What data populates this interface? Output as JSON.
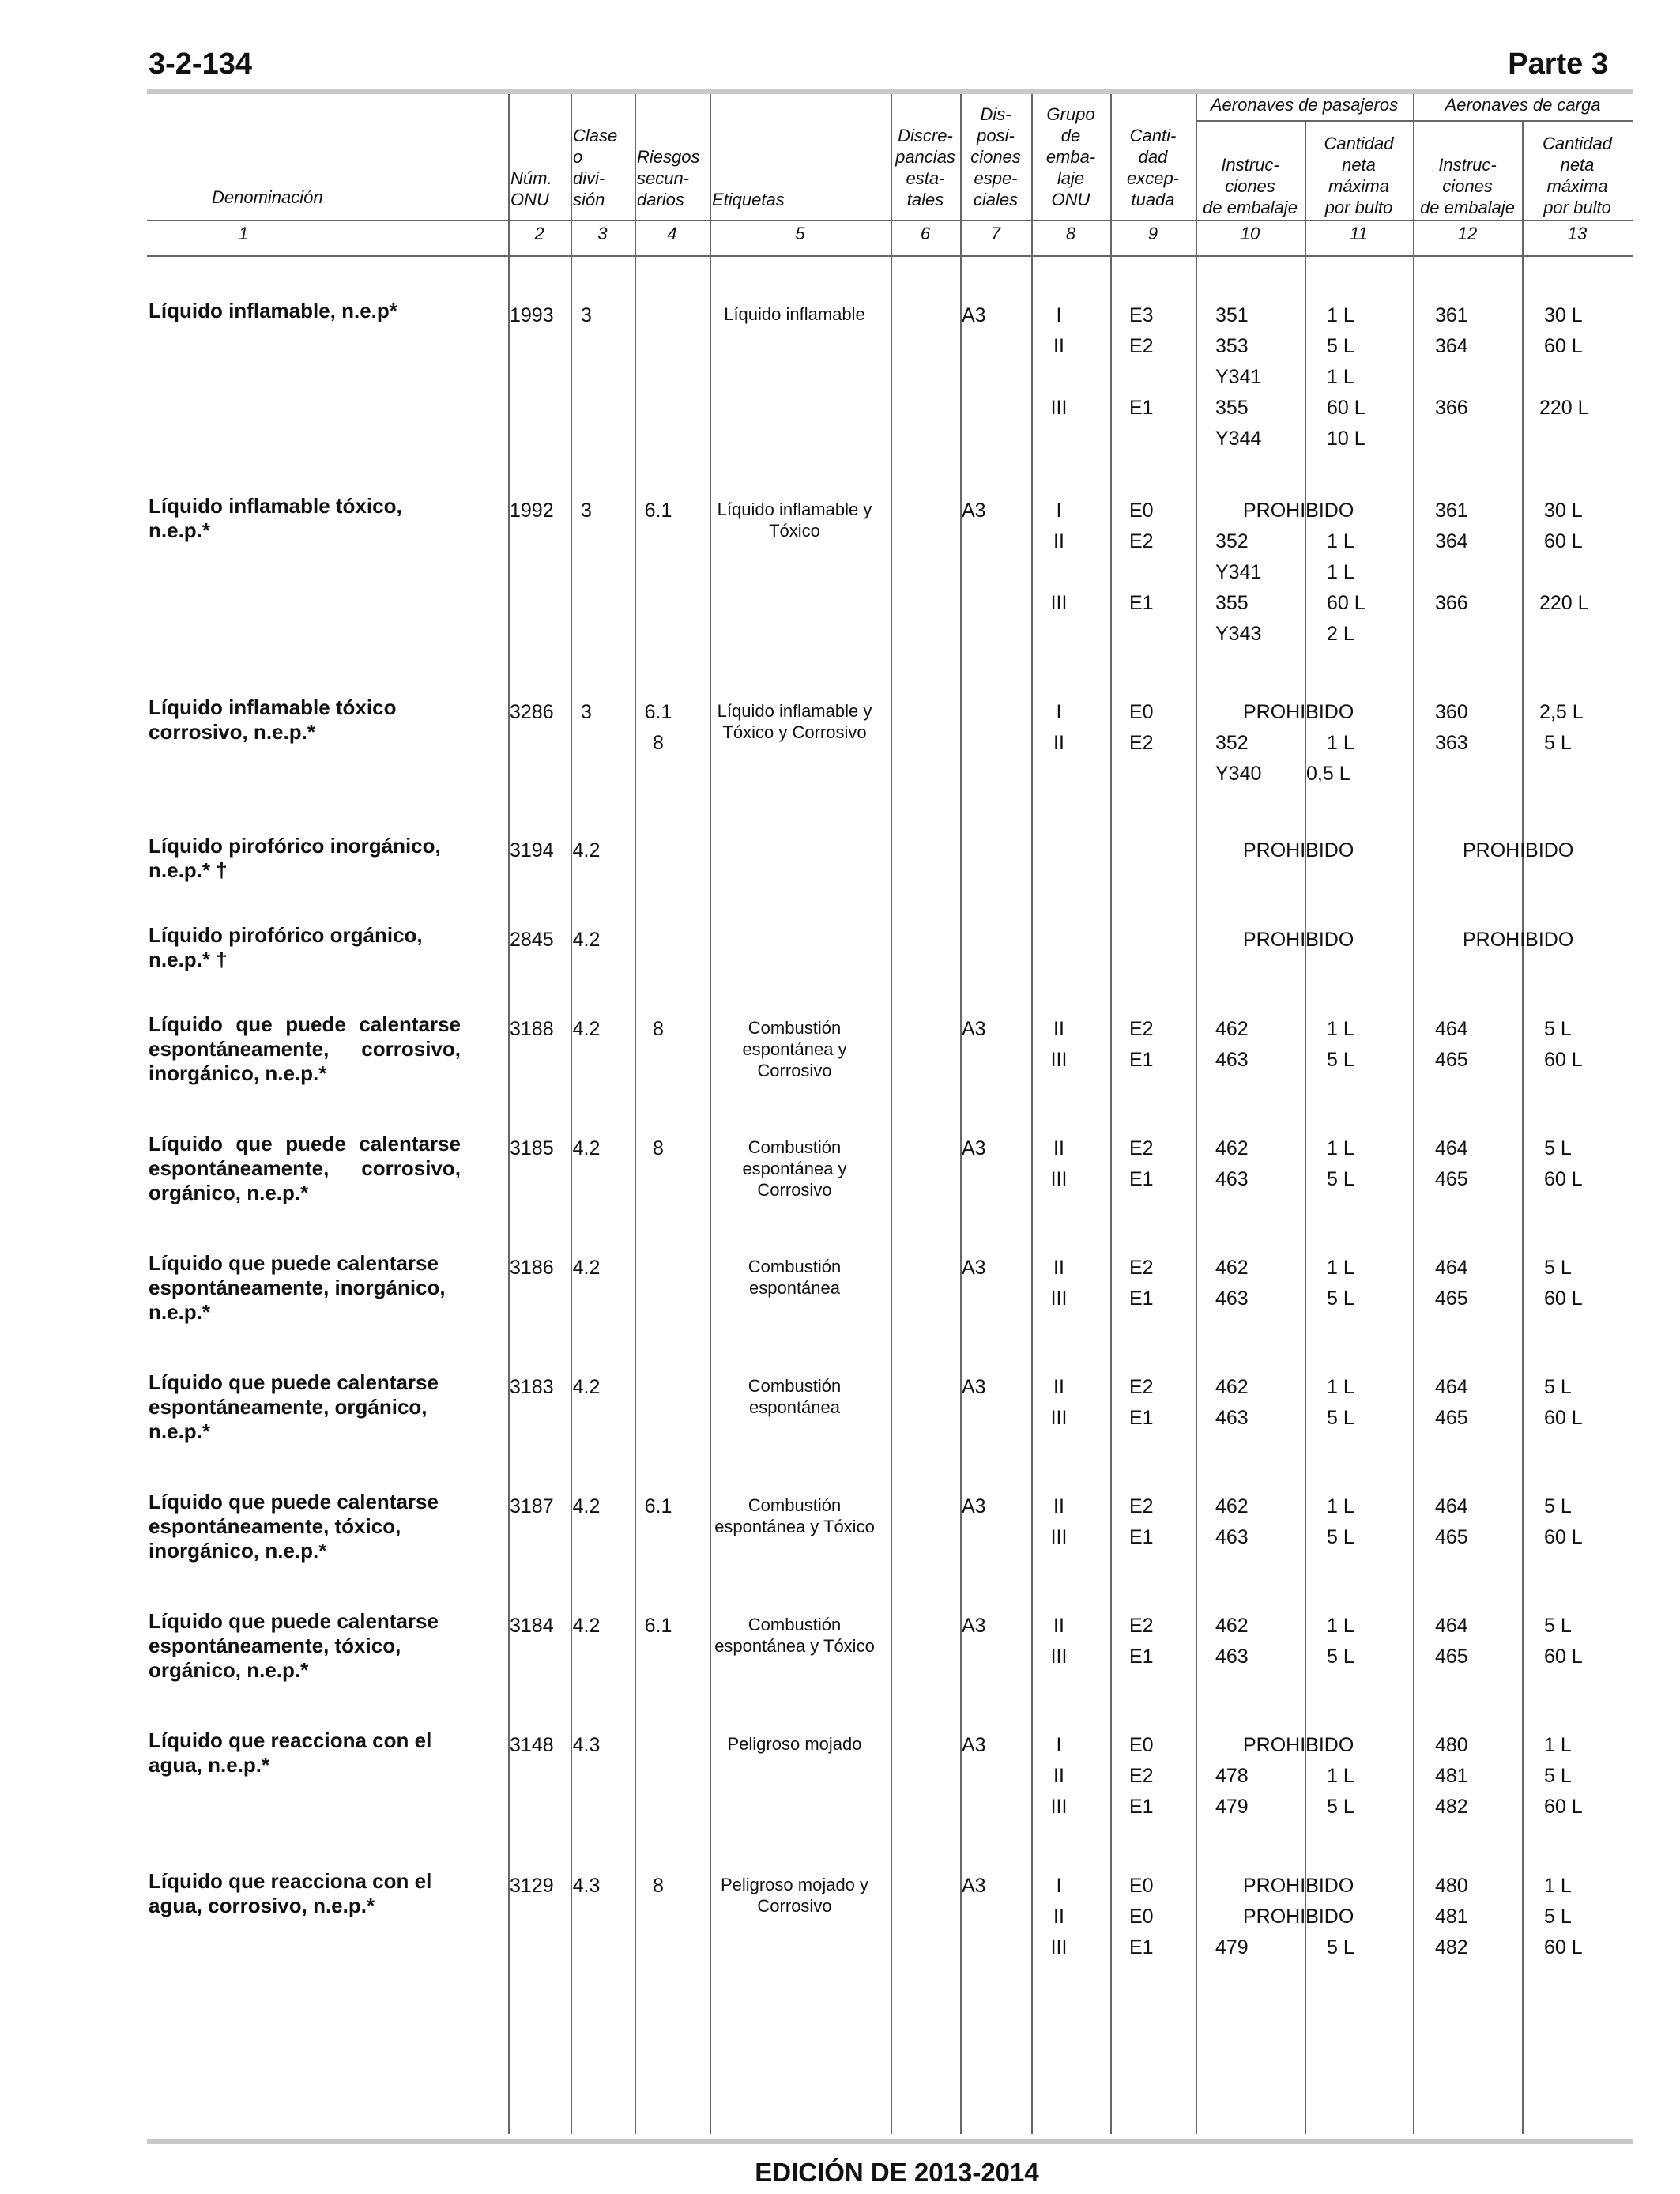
{
  "page": {
    "number": "3-2-134",
    "part": "Parte 3",
    "edition": "EDICIÓN DE 2013-2014"
  },
  "header": {
    "denominacion": "Denominación",
    "num_onu": [
      "Núm.",
      "ONU"
    ],
    "clase": [
      "Clase",
      "o",
      "divi-",
      "sión"
    ],
    "riesgos": [
      "Riesgos",
      "secun-",
      "darios"
    ],
    "etiquetas": "Etiquetas",
    "discrepancias": [
      "Discre-",
      "pancias",
      "esta-",
      "tales"
    ],
    "disposiciones": [
      "Dis-",
      "posi-",
      "ciones",
      "espe-",
      "ciales"
    ],
    "grupo": [
      "Grupo",
      "de",
      "emba-",
      "laje",
      "ONU"
    ],
    "cantidad_exceptuada": [
      "Canti-",
      "dad",
      "excep-",
      "tuada"
    ],
    "pasajeros": "Aeronaves de pasajeros",
    "carga": "Aeronaves de carga",
    "instrucciones": [
      "Instruc-",
      "ciones",
      "de embalaje"
    ],
    "cantidad_neta": [
      "Cantidad",
      "neta",
      "máxima",
      "por bulto"
    ],
    "numbers": [
      "1",
      "2",
      "3",
      "4",
      "5",
      "6",
      "7",
      "8",
      "9",
      "10",
      "11",
      "12",
      "13"
    ]
  },
  "entries": [
    {
      "name": [
        "Líquido inflamable, n.e.p*"
      ],
      "un": "1993",
      "cls": "3",
      "sub": [],
      "label": [
        "Líquido inflamable"
      ],
      "sp": "A3",
      "rows": [
        {
          "pg": "I",
          "eq": "E3",
          "pi": "351",
          "pq": "1 L",
          "ci": "361",
          "cq": "30 L"
        },
        {
          "pg": "II",
          "eq": "E2",
          "pi": "353",
          "pq": "5 L",
          "ci": "364",
          "cq": "60 L"
        },
        {
          "pg": "",
          "eq": "",
          "pi": "Y341",
          "pq": "1 L",
          "ci": "",
          "cq": ""
        },
        {
          "pg": "III",
          "eq": "E1",
          "pi": "355",
          "pq": "60 L",
          "ci": "366",
          "cq": "220 L"
        },
        {
          "pg": "",
          "eq": "",
          "pi": "Y344",
          "pq": "10 L",
          "ci": "",
          "cq": ""
        }
      ]
    },
    {
      "name": [
        "Líquido inflamable tóxico, n.e.p.*"
      ],
      "un": "1992",
      "cls": "3",
      "sub": [
        "6.1"
      ],
      "label": [
        "Líquido inflamable y",
        "Tóxico"
      ],
      "sp": "A3",
      "rows": [
        {
          "pg": "I",
          "eq": "E0",
          "prohib_p": "PROHIBIDO",
          "ci": "361",
          "cq": "30 L"
        },
        {
          "pg": "II",
          "eq": "E2",
          "pi": "352",
          "pq": "1 L",
          "ci": "364",
          "cq": "60 L"
        },
        {
          "pg": "",
          "eq": "",
          "pi": "Y341",
          "pq": "1 L",
          "ci": "",
          "cq": ""
        },
        {
          "pg": "III",
          "eq": "E1",
          "pi": "355",
          "pq": "60 L",
          "ci": "366",
          "cq": "220 L"
        },
        {
          "pg": "",
          "eq": "",
          "pi": "Y343",
          "pq": "2 L",
          "ci": "",
          "cq": ""
        }
      ]
    },
    {
      "name": [
        "Líquido inflamable tóxico",
        "corrosivo, n.e.p.*"
      ],
      "un": "3286",
      "cls": "3",
      "sub": [
        "6.1",
        "8"
      ],
      "label": [
        "Líquido inflamable y",
        "Tóxico y Corrosivo"
      ],
      "sp": "",
      "rows": [
        {
          "pg": "I",
          "eq": "E0",
          "prohib_p": "PROHIBIDO",
          "ci": "360",
          "cq": "2,5 L"
        },
        {
          "pg": "II",
          "eq": "E2",
          "pi": "352",
          "pq": "1 L",
          "ci": "363",
          "cq": "5 L"
        },
        {
          "pg": "",
          "eq": "",
          "pi": "Y340",
          "pq": "0,5 L",
          "ci": "",
          "cq": ""
        }
      ]
    },
    {
      "name": [
        "Líquido pirofórico inorgánico,",
        "n.e.p.* †"
      ],
      "un": "3194",
      "cls": "4.2",
      "sub": [],
      "label": [],
      "sp": "",
      "rows": [
        {
          "pg": "",
          "eq": "",
          "prohib_p": "PROHIBIDO",
          "prohib_c": "PROHIBIDO"
        }
      ]
    },
    {
      "name": [
        "Líquido pirofórico orgánico,",
        "n.e.p.* †"
      ],
      "un": "2845",
      "cls": "4.2",
      "sub": [],
      "label": [],
      "sp": "",
      "rows": [
        {
          "pg": "",
          "eq": "",
          "prohib_p": "PROHIBIDO",
          "prohib_c": "PROHIBIDO"
        }
      ]
    },
    {
      "name": [
        "Líquido que puede calentarse",
        "espontáneamente, corrosivo,",
        "inorgánico, n.e.p.*"
      ],
      "justify": true,
      "un": "3188",
      "cls": "4.2",
      "sub": [
        "8"
      ],
      "label": [
        "Combustión",
        "espontánea y",
        "Corrosivo"
      ],
      "sp": "A3",
      "rows": [
        {
          "pg": "II",
          "eq": "E2",
          "pi": "462",
          "pq": "1 L",
          "ci": "464",
          "cq": "5 L"
        },
        {
          "pg": "III",
          "eq": "E1",
          "pi": "463",
          "pq": "5 L",
          "ci": "465",
          "cq": "60 L"
        }
      ]
    },
    {
      "name": [
        "Líquido que puede calentarse",
        "espontáneamente, corrosivo,",
        "orgánico, n.e.p.*"
      ],
      "justify": true,
      "un": "3185",
      "cls": "4.2",
      "sub": [
        "8"
      ],
      "label": [
        "Combustión",
        "espontánea y",
        "Corrosivo"
      ],
      "sp": "A3",
      "rows": [
        {
          "pg": "II",
          "eq": "E2",
          "pi": "462",
          "pq": "1 L",
          "ci": "464",
          "cq": "5 L"
        },
        {
          "pg": "III",
          "eq": "E1",
          "pi": "463",
          "pq": "5 L",
          "ci": "465",
          "cq": "60 L"
        }
      ]
    },
    {
      "name": [
        "Líquido que puede calentarse",
        "espontáneamente, inorgánico,",
        "n.e.p.*"
      ],
      "un": "3186",
      "cls": "4.2",
      "sub": [],
      "label": [
        "Combustión",
        "espontánea"
      ],
      "sp": "A3",
      "rows": [
        {
          "pg": "II",
          "eq": "E2",
          "pi": "462",
          "pq": "1 L",
          "ci": "464",
          "cq": "5 L"
        },
        {
          "pg": "III",
          "eq": "E1",
          "pi": "463",
          "pq": "5 L",
          "ci": "465",
          "cq": "60 L"
        }
      ]
    },
    {
      "name": [
        "Líquido que puede calentarse",
        "espontáneamente, orgánico,",
        "n.e.p.*"
      ],
      "un": "3183",
      "cls": "4.2",
      "sub": [],
      "label": [
        "Combustión",
        "espontánea"
      ],
      "sp": "A3",
      "rows": [
        {
          "pg": "II",
          "eq": "E2",
          "pi": "462",
          "pq": "1 L",
          "ci": "464",
          "cq": "5 L"
        },
        {
          "pg": "III",
          "eq": "E1",
          "pi": "463",
          "pq": "5 L",
          "ci": "465",
          "cq": "60 L"
        }
      ]
    },
    {
      "name": [
        "Líquido que puede calentarse",
        "espontáneamente, tóxico,",
        "inorgánico, n.e.p.*"
      ],
      "un": "3187",
      "cls": "4.2",
      "sub": [
        "6.1"
      ],
      "label": [
        "Combustión",
        "espontánea y Tóxico"
      ],
      "sp": "A3",
      "rows": [
        {
          "pg": "II",
          "eq": "E2",
          "pi": "462",
          "pq": "1 L",
          "ci": "464",
          "cq": "5 L"
        },
        {
          "pg": "III",
          "eq": "E1",
          "pi": "463",
          "pq": "5 L",
          "ci": "465",
          "cq": "60 L"
        }
      ]
    },
    {
      "name": [
        "Líquido que puede calentarse",
        "espontáneamente, tóxico,",
        "orgánico, n.e.p.*"
      ],
      "un": "3184",
      "cls": "4.2",
      "sub": [
        "6.1"
      ],
      "label": [
        "Combustión",
        "espontánea y Tóxico"
      ],
      "sp": "A3",
      "rows": [
        {
          "pg": "II",
          "eq": "E2",
          "pi": "462",
          "pq": "1 L",
          "ci": "464",
          "cq": "5 L"
        },
        {
          "pg": "III",
          "eq": "E1",
          "pi": "463",
          "pq": "5 L",
          "ci": "465",
          "cq": "60 L"
        }
      ]
    },
    {
      "name": [
        "Líquido que reacciona con el",
        "agua, n.e.p.*"
      ],
      "un": "3148",
      "cls": "4.3",
      "sub": [],
      "label": [
        "Peligroso mojado"
      ],
      "sp": "A3",
      "rows": [
        {
          "pg": "I",
          "eq": "E0",
          "prohib_p": "PROHIBIDO",
          "ci": "480",
          "cq": "1 L"
        },
        {
          "pg": "II",
          "eq": "E2",
          "pi": "478",
          "pq": "1 L",
          "ci": "481",
          "cq": "5 L"
        },
        {
          "pg": "III",
          "eq": "E1",
          "pi": "479",
          "pq": "5 L",
          "ci": "482",
          "cq": "60 L"
        }
      ]
    },
    {
      "name": [
        "Líquido que reacciona con el",
        "agua, corrosivo, n.e.p.*"
      ],
      "un": "3129",
      "cls": "4.3",
      "sub": [
        "8"
      ],
      "label": [
        "Peligroso mojado y",
        "Corrosivo"
      ],
      "sp": "A3",
      "rows": [
        {
          "pg": "I",
          "eq": "E0",
          "prohib_p": "PROHIBIDO",
          "ci": "480",
          "cq": "1 L"
        },
        {
          "pg": "II",
          "eq": "E0",
          "prohib_p": "PROHIBIDO",
          "ci": "481",
          "cq": "5 L"
        },
        {
          "pg": "III",
          "eq": "E1",
          "pi": "479",
          "pq": "5 L",
          "ci": "482",
          "cq": "60 L"
        }
      ]
    }
  ]
}
